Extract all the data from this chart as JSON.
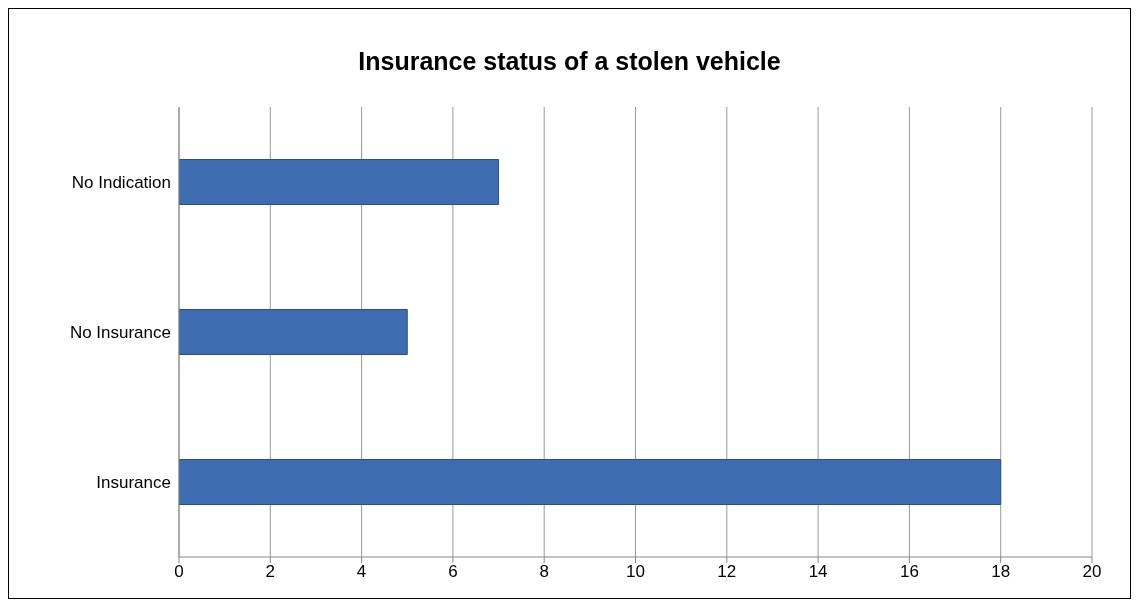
{
  "chart_data": {
    "type": "bar",
    "orientation": "horizontal",
    "title": "Insurance status of a stolen vehicle",
    "categories": [
      "No Indication",
      "No Insurance",
      "Insurance"
    ],
    "values": [
      7,
      5,
      18
    ],
    "color": "#3d6cb0",
    "xlim": [
      0,
      20
    ],
    "xticks": [
      0,
      2,
      4,
      6,
      8,
      10,
      12,
      14,
      16,
      18,
      20
    ],
    "grid": "x"
  }
}
